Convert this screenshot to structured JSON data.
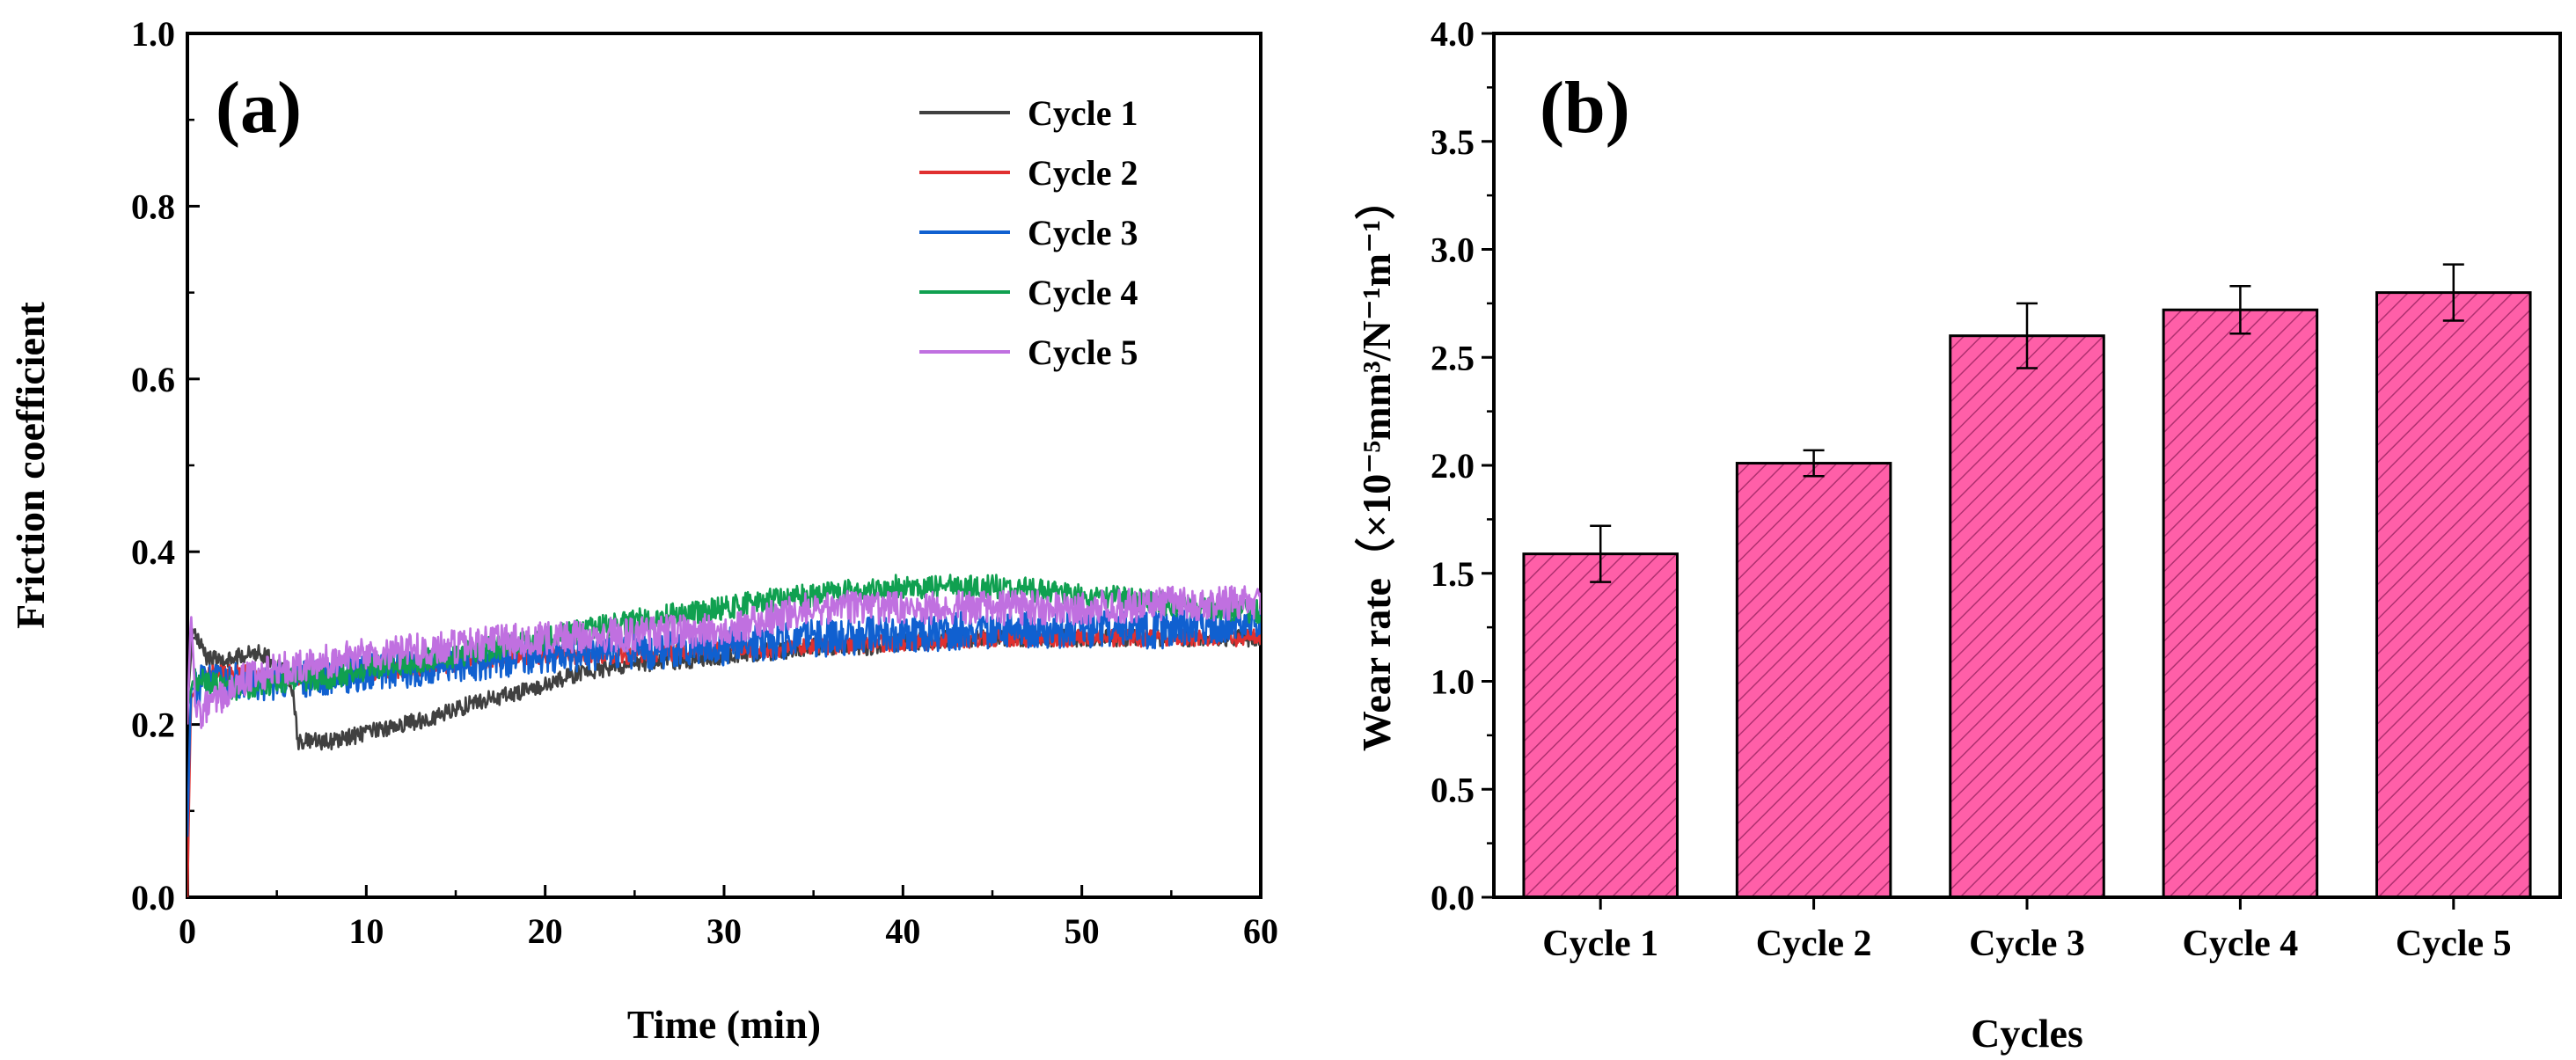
{
  "chart_data": [
    {
      "type": "line",
      "panel_label": "(a)",
      "xlabel": "Time (min)",
      "ylabel": "Friction coefficient",
      "xlim": [
        0,
        60
      ],
      "ylim": [
        0.0,
        1.0
      ],
      "x_ticks": [
        0,
        10,
        20,
        30,
        40,
        50,
        60
      ],
      "y_ticks": [
        0.0,
        0.2,
        0.4,
        0.6,
        0.8,
        1.0
      ],
      "x_tick_labels": [
        "0",
        "10",
        "20",
        "30",
        "40",
        "50",
        "60"
      ],
      "y_tick_labels": [
        "0.0",
        "0.2",
        "0.4",
        "0.6",
        "0.8",
        "1.0"
      ],
      "legend_position": "top-right",
      "series": [
        {
          "name": "Cycle 1",
          "color": "#404040",
          "x": [
            0,
            0.3,
            1,
            2,
            3,
            4,
            5,
            5.8,
            6.2,
            8,
            10,
            12,
            14,
            16,
            18,
            20,
            22,
            25,
            28,
            30,
            33,
            35,
            38,
            40,
            43,
            45,
            48,
            50,
            53,
            55,
            58,
            60
          ],
          "y": [
            0.22,
            0.31,
            0.28,
            0.27,
            0.28,
            0.285,
            0.27,
            0.25,
            0.18,
            0.18,
            0.19,
            0.2,
            0.21,
            0.225,
            0.235,
            0.245,
            0.26,
            0.27,
            0.275,
            0.28,
            0.285,
            0.29,
            0.29,
            0.295,
            0.3,
            0.3,
            0.3,
            0.3,
            0.3,
            0.3,
            0.3,
            0.3
          ]
        },
        {
          "name": "Cycle 2",
          "color": "#e03030",
          "x": [
            0,
            0.2,
            1,
            3,
            5,
            7,
            10,
            15,
            20,
            25,
            30,
            35,
            40,
            45,
            50,
            55,
            60
          ],
          "y": [
            0.0,
            0.23,
            0.26,
            0.26,
            0.25,
            0.26,
            0.26,
            0.27,
            0.28,
            0.28,
            0.285,
            0.29,
            0.295,
            0.3,
            0.3,
            0.3,
            0.3
          ]
        },
        {
          "name": "Cycle 3",
          "color": "#1060d0",
          "x": [
            0,
            0.2,
            1,
            3,
            5,
            7,
            10,
            15,
            20,
            25,
            30,
            35,
            40,
            45,
            50,
            55,
            60
          ],
          "y": [
            0.07,
            0.24,
            0.25,
            0.25,
            0.25,
            0.255,
            0.26,
            0.27,
            0.28,
            0.285,
            0.29,
            0.3,
            0.305,
            0.31,
            0.31,
            0.31,
            0.32
          ]
        },
        {
          "name": "Cycle 4",
          "color": "#10a050",
          "x": [
            0,
            0.3,
            1,
            3,
            5,
            8,
            10,
            15,
            20,
            25,
            30,
            33,
            35,
            40,
            45,
            50,
            55,
            60
          ],
          "y": [
            0.22,
            0.25,
            0.25,
            0.24,
            0.25,
            0.255,
            0.265,
            0.28,
            0.3,
            0.32,
            0.335,
            0.345,
            0.35,
            0.36,
            0.36,
            0.35,
            0.34,
            0.33
          ]
        },
        {
          "name": "Cycle 5",
          "color": "#c070e0",
          "x": [
            0,
            0.2,
            0.5,
            1,
            3,
            5,
            10,
            15,
            20,
            25,
            30,
            35,
            40,
            45,
            50,
            55,
            60
          ],
          "y": [
            0.2,
            0.33,
            0.21,
            0.22,
            0.25,
            0.265,
            0.28,
            0.29,
            0.3,
            0.305,
            0.31,
            0.335,
            0.335,
            0.335,
            0.335,
            0.34,
            0.34
          ]
        }
      ]
    },
    {
      "type": "bar",
      "panel_label": "(b)",
      "xlabel": "Cycles",
      "ylabel": "Wear rate（×10⁻⁵mm³/N⁻¹m⁻¹）",
      "ylim": [
        0.0,
        4.0
      ],
      "y_ticks": [
        0.0,
        0.5,
        1.0,
        1.5,
        2.0,
        2.5,
        3.0,
        3.5,
        4.0
      ],
      "y_tick_labels": [
        "0.0",
        "0.5",
        "1.0",
        "1.5",
        "2.0",
        "2.5",
        "3.0",
        "3.5",
        "4.0"
      ],
      "categories": [
        "Cycle 1",
        "Cycle 2",
        "Cycle 3",
        "Cycle 4",
        "Cycle 5"
      ],
      "values": [
        1.59,
        2.01,
        2.6,
        2.72,
        2.8
      ],
      "errors": [
        0.13,
        0.06,
        0.15,
        0.11,
        0.13
      ],
      "bar_color": "#ff5fa8",
      "hatch": "diagonal"
    }
  ]
}
